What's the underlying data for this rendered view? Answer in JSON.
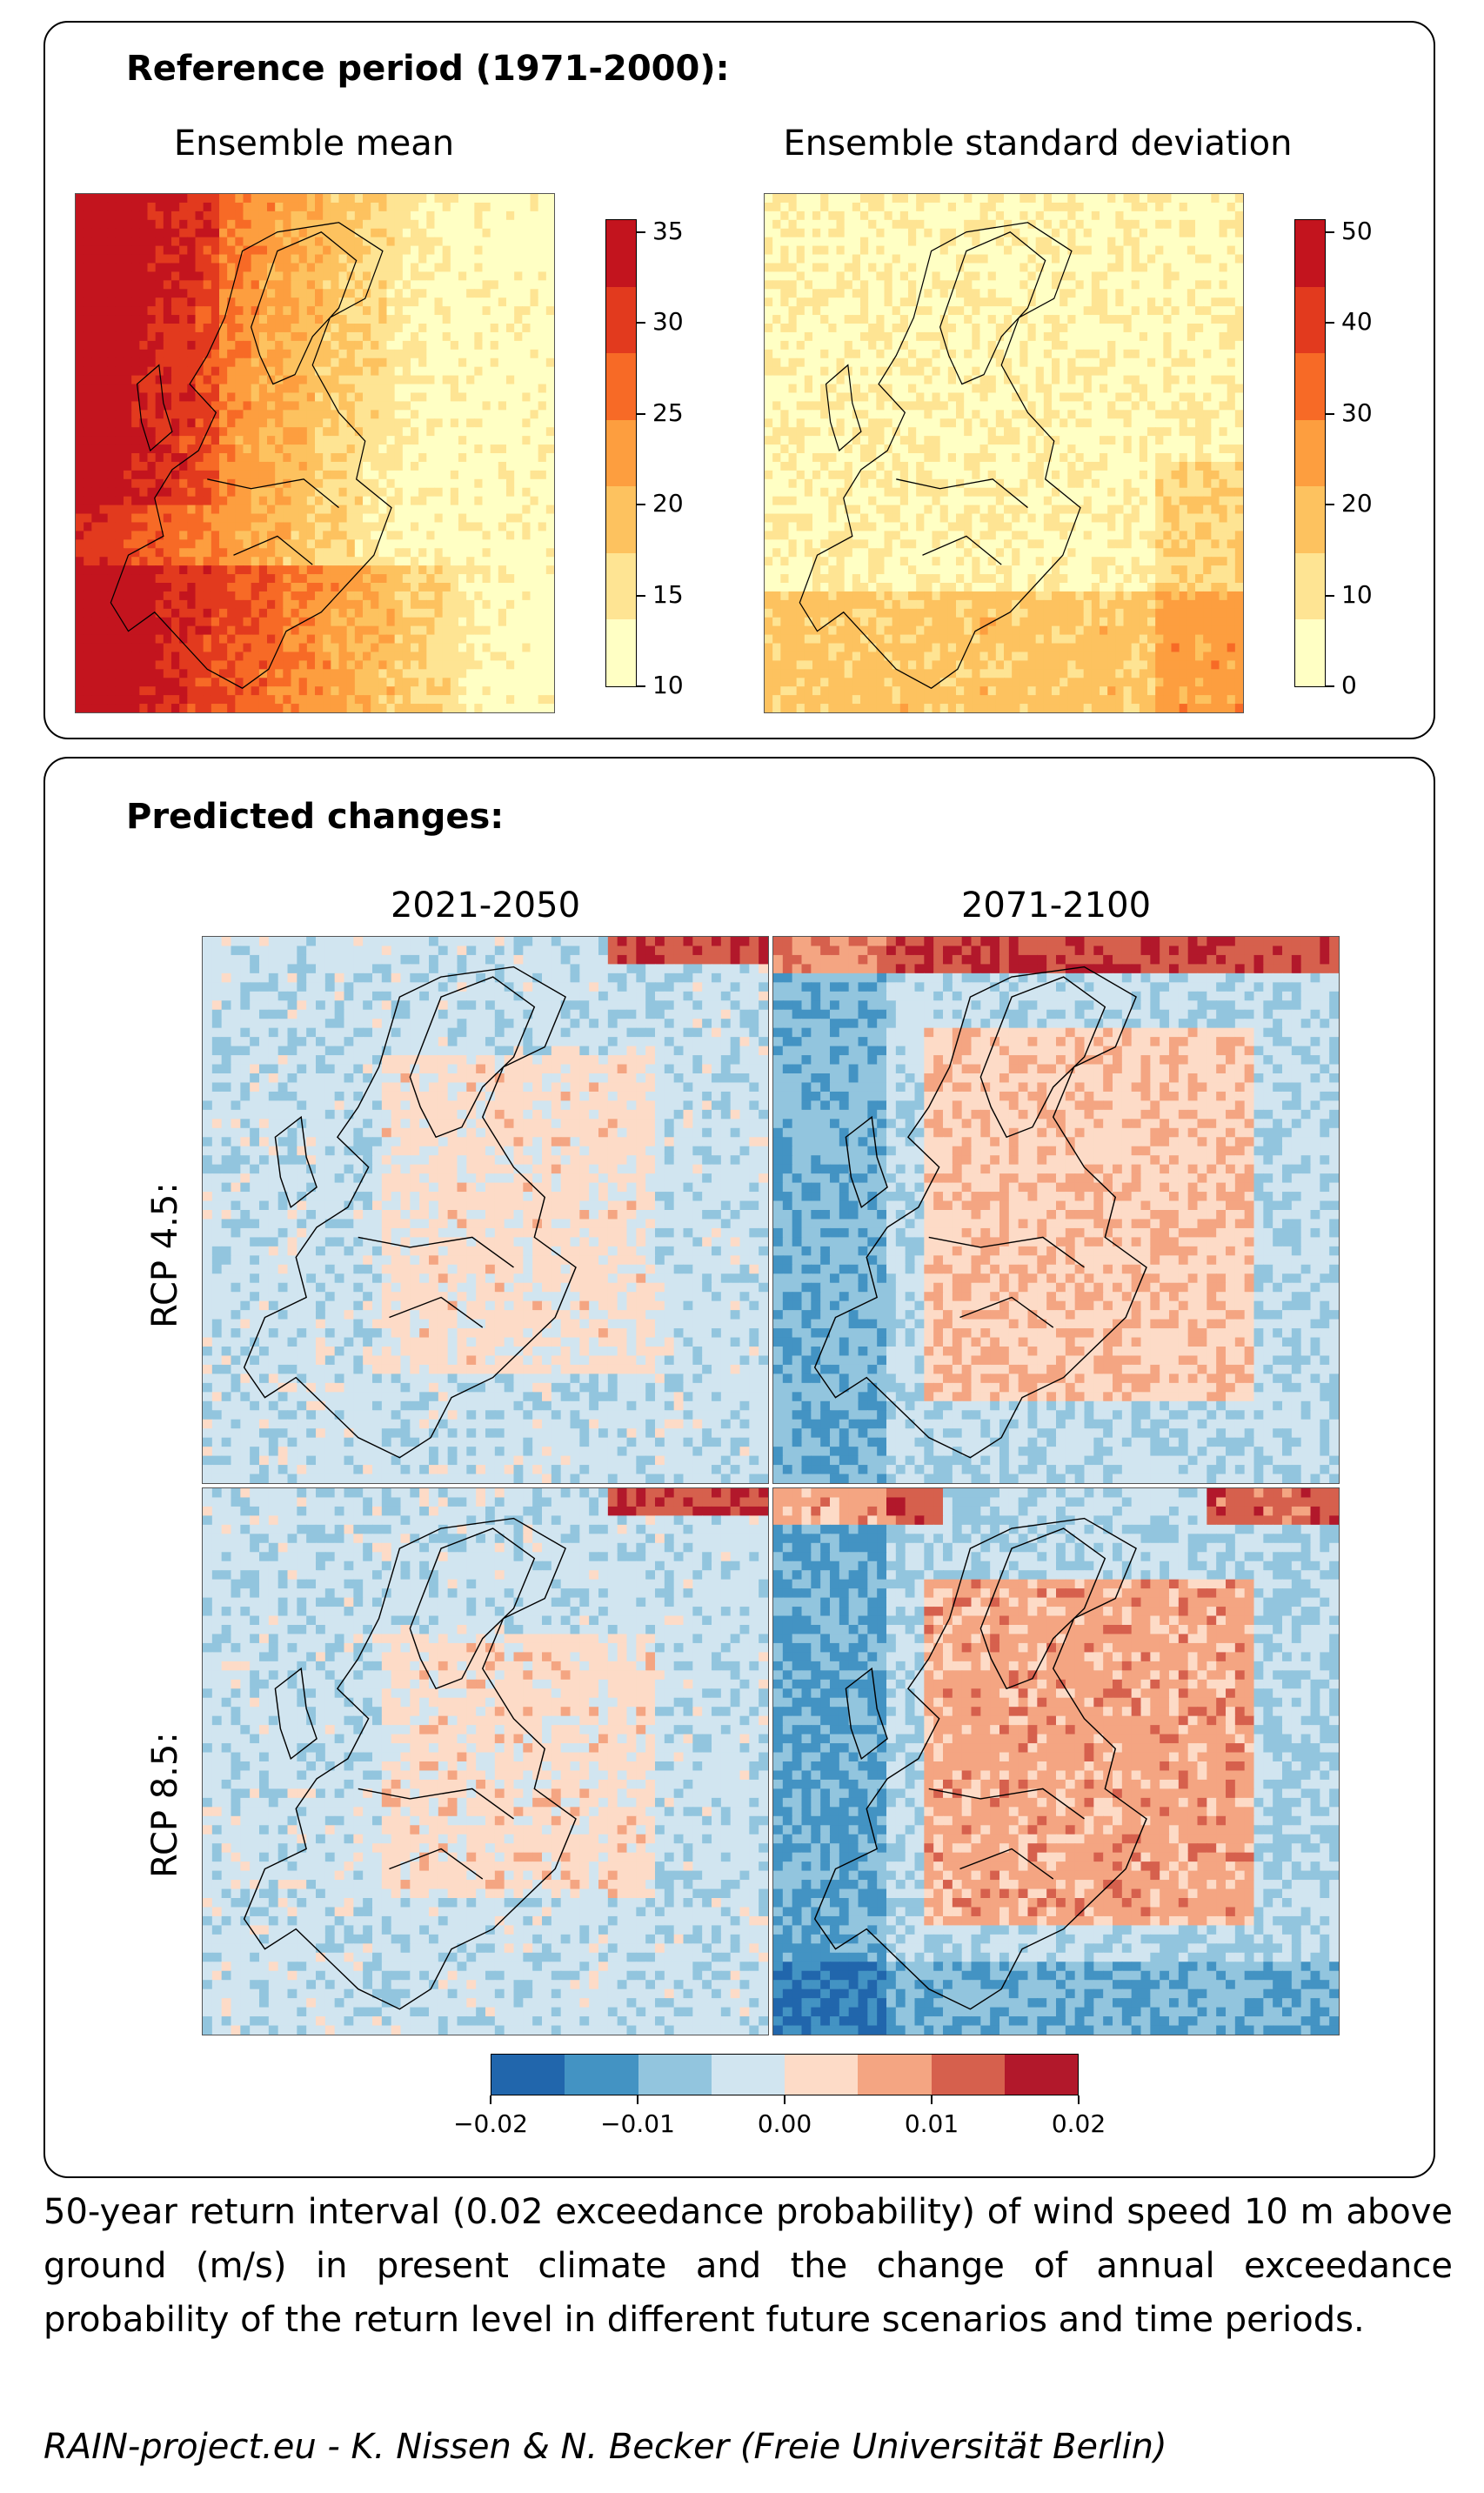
{
  "reference": {
    "title": "Reference period (1971-2000):",
    "mean_title": "Ensemble mean",
    "std_title": "Ensemble standard deviation",
    "mean_scale": {
      "ticks": [
        "10",
        "15",
        "20",
        "25",
        "30",
        "35"
      ],
      "colors": [
        "#ffffc4",
        "#fee493",
        "#fdc25f",
        "#fd9e3f",
        "#f76a26",
        "#e23a1e",
        "#c3141e"
      ]
    },
    "std_scale": {
      "ticks": [
        "0",
        "10",
        "20",
        "30",
        "40",
        "50"
      ],
      "colors": [
        "#ffffc4",
        "#fee493",
        "#fdc25f",
        "#fd9e3f",
        "#f76a26",
        "#e23a1e",
        "#c3141e"
      ]
    }
  },
  "changes": {
    "title": "Predicted changes:",
    "columns": [
      "2021-2050",
      "2071-2100"
    ],
    "rows": [
      "RCP 4.5:",
      "RCP 8.5:"
    ],
    "scale": {
      "ticks": [
        "−0.02",
        "−0.01",
        "0.00",
        "0.01",
        "0.02"
      ],
      "colors": [
        "#2166ac",
        "#4393c3",
        "#92c5de",
        "#d1e5f0",
        "#fddbc7",
        "#f4a582",
        "#d6604d",
        "#b2182b"
      ]
    }
  },
  "caption": "50-year return interval (0.02 exceedance probability) of wind speed 10 m above ground (m/s) in present climate and the change of annual exceedance probability of the return level in different future scenarios and time periods.",
  "credit": "RAIN-project.eu - K. Nissen & N. Becker (Freie Universität Berlin)"
}
